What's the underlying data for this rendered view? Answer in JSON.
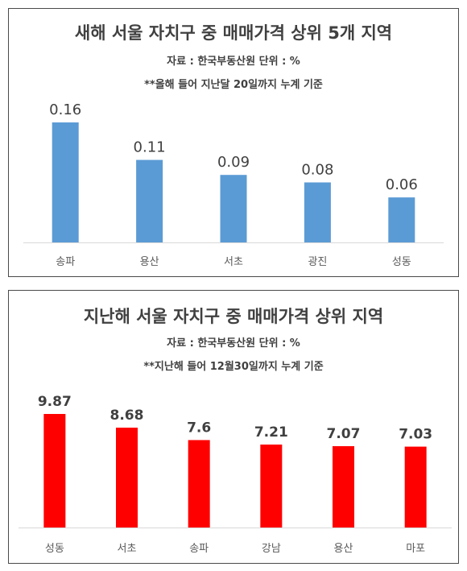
{
  "chart_data": [
    {
      "type": "bar",
      "title": "새해 서울 자치구 중 매매가격 상위 5개 지역",
      "source": "자료 : 한국부동산원  단위 : %",
      "note": "**올해 들어 지난달 20일까지 누계 기준",
      "categories": [
        "송파",
        "용산",
        "서초",
        "광진",
        "성동"
      ],
      "values": [
        0.16,
        0.11,
        0.09,
        0.08,
        0.06
      ],
      "value_labels": [
        "0.16",
        "0.11",
        "0.09",
        "0.08",
        "0.06"
      ],
      "ylim": [
        0,
        0.16
      ],
      "bar_color": "#5b9bd5",
      "grid": false,
      "legend": "none"
    },
    {
      "type": "bar",
      "title": "지난해 서울 자치구 중 매매가격 상위 지역",
      "source": "자료 : 한국부동산원  단위 : %",
      "note": "**지난해 들어 12월30일까지 누계 기준",
      "categories": [
        "성동",
        "서초",
        "송파",
        "강남",
        "용산",
        "마포"
      ],
      "values": [
        9.87,
        8.68,
        7.6,
        7.21,
        7.07,
        7.03
      ],
      "value_labels": [
        "9.87",
        "8.68",
        "7.6",
        "7.21",
        "7.07",
        "7.03"
      ],
      "ylim": [
        0,
        9.87
      ],
      "bar_color": "#ff0000",
      "grid": false,
      "legend": "none"
    }
  ]
}
